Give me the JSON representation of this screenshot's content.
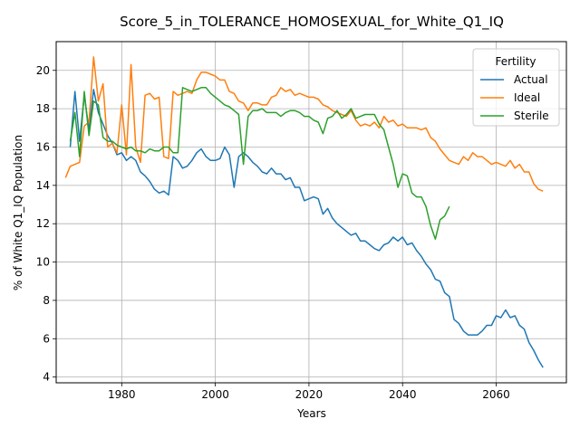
{
  "chart_data": {
    "type": "line",
    "title": "Score_5_in_TOLERANCE_HOMOSEXUAL_for_White_Q1_IQ",
    "xlabel": "Years",
    "ylabel": "% of White Q1_IQ Population",
    "xlim": [
      1966,
      2075
    ],
    "ylim": [
      3.7,
      21.5
    ],
    "xticks": [
      1980,
      2000,
      2020,
      2040,
      2060
    ],
    "yticks": [
      4,
      6,
      8,
      10,
      12,
      14,
      16,
      18,
      20
    ],
    "grid": true,
    "legend": {
      "title": "Fertility",
      "position": "top-right"
    },
    "series": [
      {
        "name": "Actual",
        "color": "#1f77b4",
        "x": [
          1969,
          1970,
          1971,
          1972,
          1973,
          1974,
          1975,
          1976,
          1977,
          1978,
          1979,
          1980,
          1981,
          1982,
          1983,
          1984,
          1985,
          1986,
          1987,
          1988,
          1989,
          1990,
          1991,
          1992,
          1993,
          1994,
          1995,
          1996,
          1997,
          1998,
          1999,
          2000,
          2001,
          2002,
          2003,
          2004,
          2005,
          2006,
          2007,
          2008,
          2009,
          2010,
          2011,
          2012,
          2013,
          2014,
          2015,
          2016,
          2017,
          2018,
          2019,
          2020,
          2021,
          2022,
          2023,
          2024,
          2025,
          2026,
          2027,
          2028,
          2029,
          2030,
          2031,
          2032,
          2033,
          2034,
          2035,
          2036,
          2037,
          2038,
          2039,
          2040,
          2041,
          2042,
          2043,
          2044,
          2045,
          2046,
          2047,
          2048,
          2049,
          2050,
          2051,
          2052,
          2053,
          2054,
          2055,
          2056,
          2057,
          2058,
          2059,
          2060,
          2061,
          2062,
          2063,
          2064,
          2065,
          2066,
          2067,
          2068,
          2069,
          2070
        ],
        "y": [
          16.0,
          18.9,
          16.3,
          18.7,
          16.9,
          19.0,
          17.8,
          17.2,
          16.6,
          16.2,
          15.6,
          15.7,
          15.3,
          15.5,
          15.3,
          14.7,
          14.5,
          14.2,
          13.8,
          13.6,
          13.7,
          13.5,
          15.5,
          15.3,
          14.9,
          15.0,
          15.3,
          15.7,
          15.9,
          15.5,
          15.3,
          15.3,
          15.4,
          16.0,
          15.6,
          13.9,
          15.5,
          15.7,
          15.5,
          15.2,
          15.0,
          14.7,
          14.6,
          14.9,
          14.6,
          14.6,
          14.3,
          14.4,
          13.9,
          13.9,
          13.2,
          13.3,
          13.4,
          13.3,
          12.5,
          12.8,
          12.3,
          12.0,
          11.8,
          11.6,
          11.4,
          11.5,
          11.1,
          11.1,
          10.9,
          10.7,
          10.6,
          10.9,
          11.0,
          11.3,
          11.1,
          11.3,
          10.9,
          11.0,
          10.6,
          10.3,
          9.9,
          9.6,
          9.1,
          9.0,
          8.4,
          8.2,
          7.0,
          6.8,
          6.4,
          6.2,
          6.2,
          6.2,
          6.4,
          6.7,
          6.7,
          7.2,
          7.1,
          7.5,
          7.1,
          7.2,
          6.7,
          6.5,
          5.8,
          5.4,
          4.9,
          4.5
        ]
      },
      {
        "name": "Ideal",
        "color": "#ff7f0e",
        "x": [
          1968,
          1969,
          1970,
          1971,
          1972,
          1973,
          1974,
          1975,
          1976,
          1977,
          1978,
          1979,
          1980,
          1981,
          1982,
          1983,
          1984,
          1985,
          1986,
          1987,
          1988,
          1989,
          1990,
          1991,
          1992,
          1993,
          1994,
          1995,
          1996,
          1997,
          1998,
          1999,
          2000,
          2001,
          2002,
          2003,
          2004,
          2005,
          2006,
          2007,
          2008,
          2009,
          2010,
          2011,
          2012,
          2013,
          2014,
          2015,
          2016,
          2017,
          2018,
          2019,
          2020,
          2021,
          2022,
          2023,
          2024,
          2025,
          2026,
          2027,
          2028,
          2029,
          2030,
          2031,
          2032,
          2033,
          2034,
          2035,
          2036,
          2037,
          2038,
          2039,
          2040,
          2041,
          2042,
          2043,
          2044,
          2045,
          2046,
          2047,
          2048,
          2049,
          2050,
          2051,
          2052,
          2053,
          2054,
          2055,
          2056,
          2057,
          2058,
          2059,
          2060,
          2061,
          2062,
          2063,
          2064,
          2065,
          2066,
          2067,
          2068,
          2069,
          2070
        ],
        "y": [
          14.4,
          15.0,
          15.1,
          15.2,
          17.1,
          17.3,
          20.7,
          18.4,
          19.3,
          16.0,
          16.2,
          15.7,
          18.2,
          15.6,
          20.3,
          16.0,
          15.2,
          18.7,
          18.8,
          18.5,
          18.6,
          15.5,
          15.4,
          18.9,
          18.7,
          18.8,
          18.9,
          18.8,
          19.5,
          19.9,
          19.9,
          19.8,
          19.7,
          19.5,
          19.5,
          18.9,
          18.8,
          18.4,
          18.3,
          17.9,
          18.3,
          18.3,
          18.2,
          18.2,
          18.6,
          18.7,
          19.1,
          18.9,
          19.0,
          18.7,
          18.8,
          18.7,
          18.6,
          18.6,
          18.5,
          18.2,
          18.1,
          17.9,
          17.8,
          17.7,
          17.6,
          17.9,
          17.4,
          17.1,
          17.2,
          17.1,
          17.3,
          17.0,
          17.6,
          17.3,
          17.4,
          17.1,
          17.2,
          17.0,
          17.0,
          17.0,
          16.9,
          17.0,
          16.5,
          16.3,
          15.9,
          15.6,
          15.3,
          15.2,
          15.1,
          15.5,
          15.3,
          15.7,
          15.5,
          15.5,
          15.3,
          15.1,
          15.2,
          15.1,
          15.0,
          15.3,
          14.9,
          15.1,
          14.7,
          14.7,
          14.1,
          13.8,
          13.7
        ],
        "data_end": 2070.5
      },
      {
        "name": "Sterile",
        "color": "#2ca02c",
        "x": [
          1969,
          1970,
          1971,
          1972,
          1973,
          1974,
          1975,
          1976,
          1977,
          1978,
          1979,
          1980,
          1981,
          1982,
          1983,
          1984,
          1985,
          1986,
          1987,
          1988,
          1989,
          1990,
          1991,
          1992,
          1993,
          1994,
          1995,
          1996,
          1997,
          1998,
          1999,
          2000,
          2001,
          2002,
          2003,
          2004,
          2005,
          2006,
          2007,
          2008,
          2009,
          2010,
          2011,
          2012,
          2013,
          2014,
          2015,
          2016,
          2017,
          2018,
          2019,
          2020,
          2021,
          2022,
          2023,
          2024,
          2025,
          2026,
          2027,
          2028,
          2029,
          2030,
          2031,
          2032,
          2033,
          2034,
          2035,
          2036,
          2037,
          2038,
          2039,
          2040,
          2041,
          2042,
          2043,
          2044,
          2045,
          2046,
          2047,
          2048,
          2049,
          2050
        ],
        "y": [
          16.3,
          17.8,
          15.5,
          18.9,
          16.6,
          18.4,
          18.2,
          16.5,
          16.3,
          16.3,
          16.1,
          16.0,
          15.9,
          16.0,
          15.8,
          15.8,
          15.7,
          15.9,
          15.8,
          15.8,
          16.0,
          16.0,
          15.7,
          15.7,
          19.1,
          19.0,
          18.9,
          19.0,
          19.1,
          19.1,
          18.8,
          18.6,
          18.4,
          18.2,
          18.1,
          17.9,
          17.7,
          15.1,
          17.6,
          17.9,
          17.9,
          18.0,
          17.8,
          17.8,
          17.8,
          17.6,
          17.8,
          17.9,
          17.9,
          17.8,
          17.6,
          17.6,
          17.4,
          17.3,
          16.7,
          17.5,
          17.6,
          17.9,
          17.5,
          17.7,
          18.0,
          17.5,
          17.6,
          17.7,
          17.7,
          17.7,
          17.2,
          16.9,
          16.0,
          15.1,
          13.9,
          14.6,
          14.5,
          13.6,
          13.4,
          13.4,
          12.9,
          11.9,
          11.2,
          12.2,
          12.4,
          12.9
        ]
      }
    ]
  }
}
